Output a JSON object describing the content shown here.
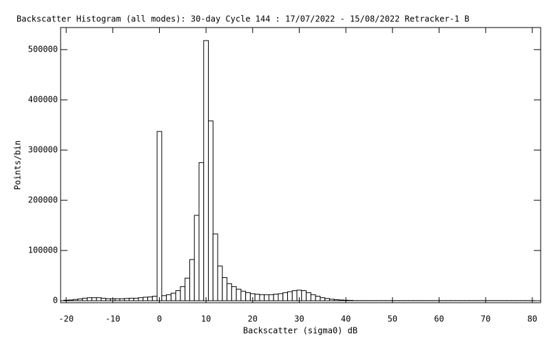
{
  "chart_data": {
    "type": "histogram",
    "title": "Backscatter Histogram (all modes): 30-day Cycle 144 : 17/07/2022 - 15/08/2022 Retracker-1 B",
    "xlabel": "Backscatter (sigma0) dB",
    "ylabel": "Points/bin",
    "bins": [
      -20.5,
      -19.5,
      -18.5,
      -17.5,
      -16.5,
      -15.5,
      -14.5,
      -13.5,
      -12.5,
      -11.5,
      -10.5,
      -9.5,
      -8.5,
      -7.5,
      -6.5,
      -5.5,
      -4.5,
      -3.5,
      -2.5,
      -1.5,
      -0.5,
      0.5,
      1.5,
      2.5,
      3.5,
      4.5,
      5.5,
      6.5,
      7.5,
      8.5,
      9.5,
      10.5,
      11.5,
      12.5,
      13.5,
      14.5,
      15.5,
      16.5,
      17.5,
      18.5,
      19.5,
      20.5,
      21.5,
      22.5,
      23.5,
      24.5,
      25.5,
      26.5,
      27.5,
      28.5,
      29.5,
      30.5,
      31.5,
      32.5,
      33.5,
      34.5,
      35.5,
      36.5,
      37.5,
      38.5,
      39.5,
      40.5,
      41.5,
      42.5,
      43.5,
      44.5,
      45.5,
      46.5,
      47.5,
      48.5,
      49.5,
      50.5,
      51.5,
      52.5,
      53.5,
      54.5,
      55.5,
      56.5,
      57.5,
      58.5,
      59.5,
      60.5,
      61.5,
      62.5,
      63.5,
      64.5,
      65.5,
      66.5,
      67.5,
      68.5,
      69.5,
      70.5,
      71.5,
      72.5,
      73.5,
      74.5,
      75.5,
      76.5,
      77.5,
      78.5,
      79.5,
      80.5
    ],
    "values": [
      1000,
      1500,
      2500,
      3500,
      5000,
      6000,
      6000,
      6000,
      5000,
      4000,
      4000,
      4000,
      4000,
      4500,
      5000,
      5000,
      6000,
      7000,
      7500,
      9000,
      337000,
      10000,
      12000,
      15000,
      20000,
      28000,
      45000,
      82000,
      170000,
      275000,
      518000,
      358000,
      133000,
      69000,
      46000,
      34000,
      28000,
      23000,
      19000,
      16000,
      14000,
      13000,
      12000,
      12000,
      12000,
      13000,
      14000,
      16000,
      18000,
      20000,
      21000,
      20000,
      16000,
      12000,
      9000,
      6000,
      4500,
      3000,
      2000,
      1500,
      1000,
      700,
      200,
      200,
      200,
      200,
      200,
      200,
      200,
      200,
      200,
      200,
      200,
      200,
      200,
      200,
      200,
      200,
      200,
      200,
      200,
      200,
      200,
      200,
      200,
      200,
      200,
      200,
      200,
      200,
      200,
      200,
      200,
      200,
      200,
      200,
      200,
      200,
      200,
      200,
      200
    ],
    "color": "#ffffff",
    "edgecolor": "#000000",
    "xlim": [
      -21.2,
      81.8
    ],
    "xticks": [
      -20,
      -10,
      0,
      10,
      20,
      30,
      40,
      50,
      60,
      70,
      80
    ],
    "ylim": [
      -4000,
      544000
    ],
    "yticks": [
      0,
      100000,
      200000,
      300000,
      400000,
      500000
    ],
    "grid": false,
    "mirror_ticks": true
  }
}
